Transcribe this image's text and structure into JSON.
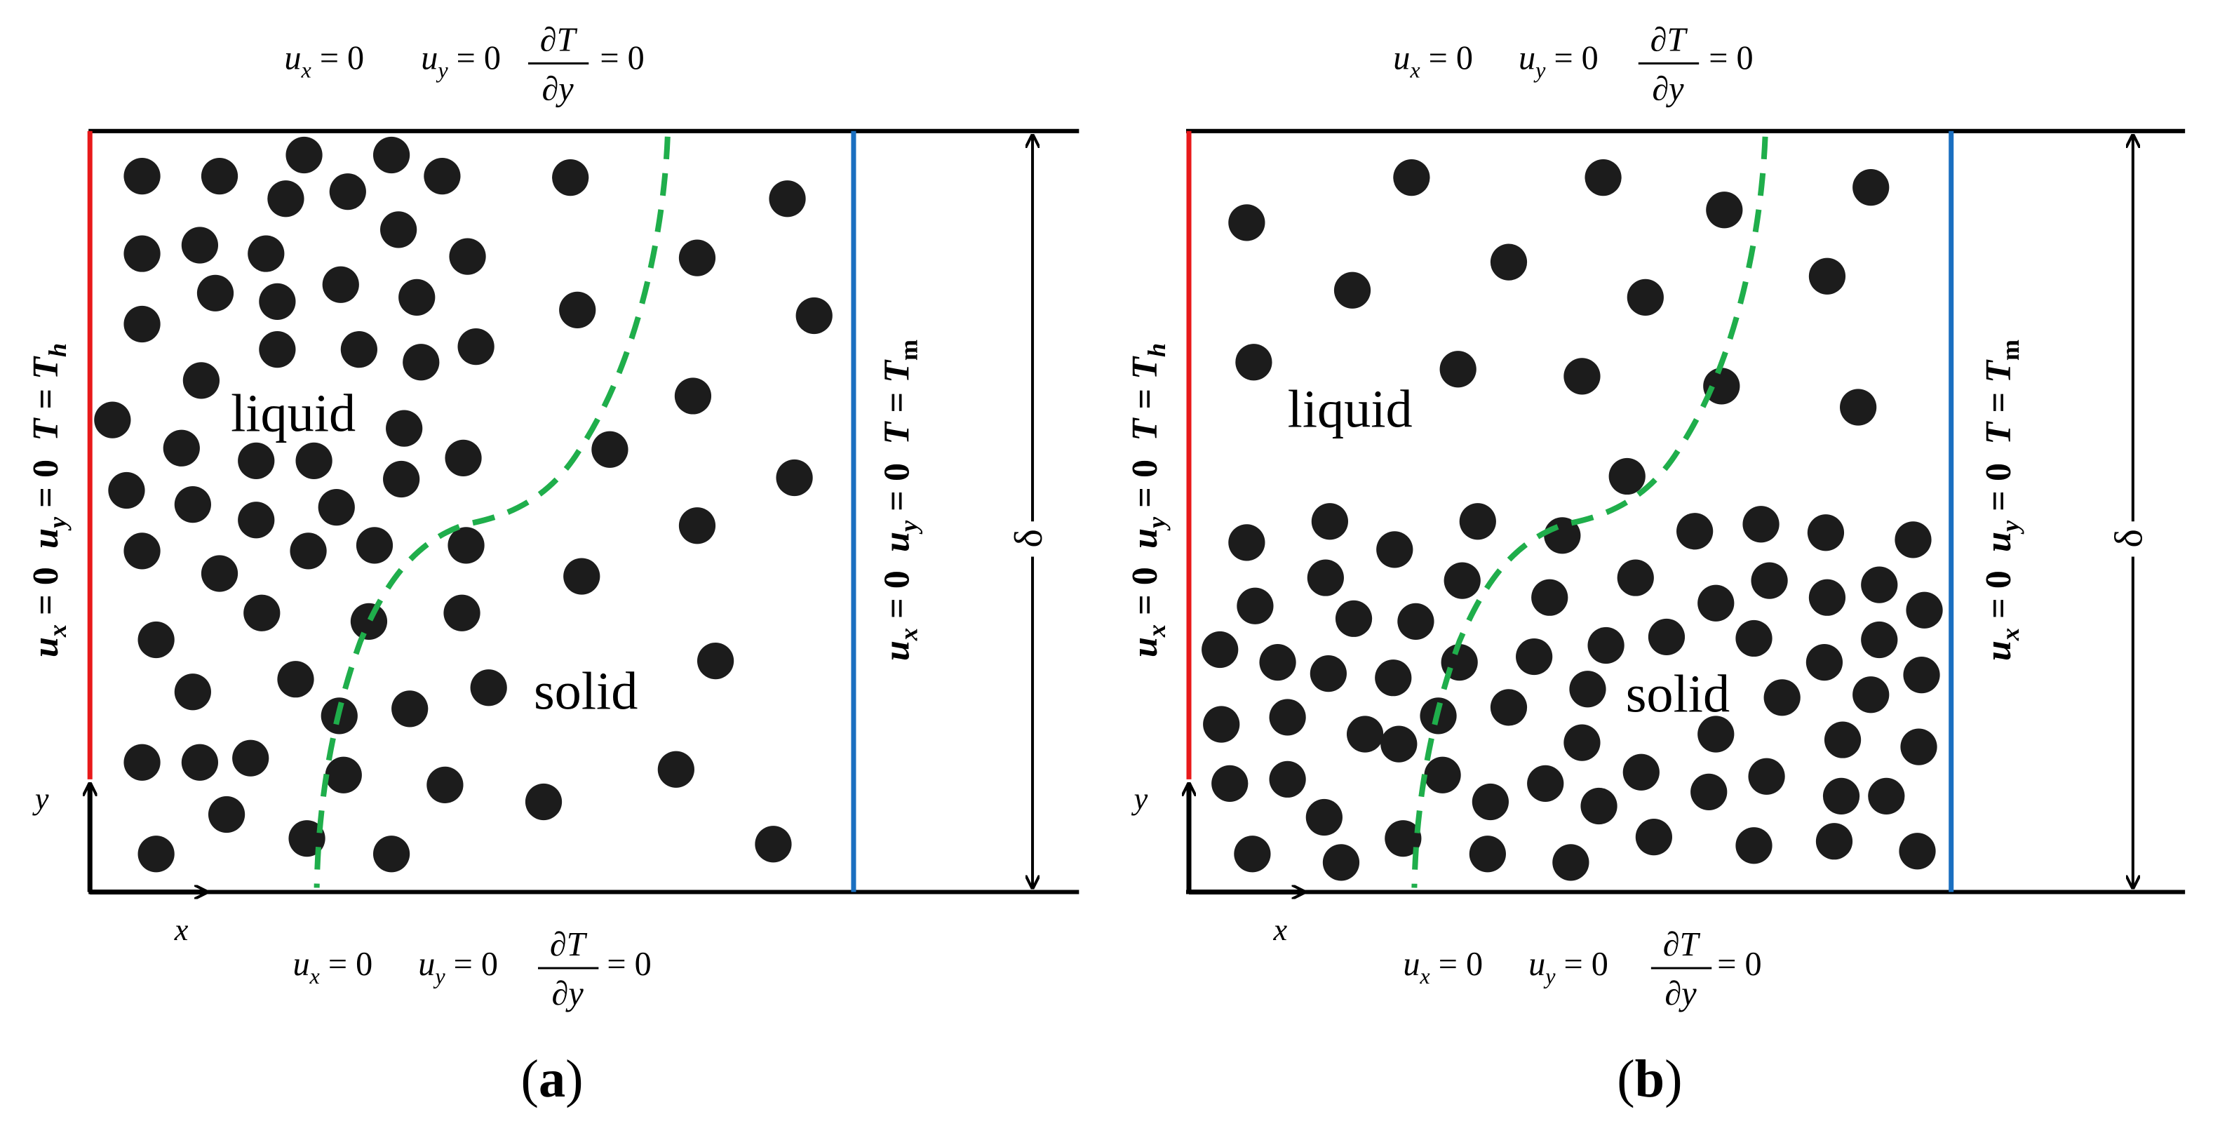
{
  "panels": [
    {
      "label": "(a)",
      "label_letter": "a",
      "region_upper": "liquid",
      "region_lower": "solid",
      "top_bc": {
        "ux": "u",
        "ux_sub": "x",
        "uy": "u",
        "uy_sub": "y",
        "eq": "= 0",
        "dT_num": "∂T",
        "dT_den": "∂y"
      },
      "bottom_bc": {
        "ux": "u",
        "ux_sub": "x",
        "uy": "u",
        "uy_sub": "y",
        "eq": "= 0",
        "dT_num": "∂T",
        "dT_den": "∂y"
      },
      "left_bc": "u",
      "left_bc_full": {
        "u1": "u",
        "s1": "x",
        "e1": " = 0  ",
        "u2": "u",
        "s2": "y",
        "e2": " = 0  ",
        "t": "T = T",
        "ts": "h"
      },
      "right_bc_full": {
        "u1": "u",
        "s1": "x",
        "e1": " = 0  ",
        "u2": "u",
        "s2": "y",
        "e2": " = 0  ",
        "t": "T = T",
        "ts": "m"
      },
      "axis_x": "x",
      "axis_y": "y",
      "dimension": "δ",
      "particles": [
        [
          100,
          125
        ],
        [
          155,
          125
        ],
        [
          215,
          110
        ],
        [
          277,
          110
        ],
        [
          313,
          125
        ],
        [
          404,
          126
        ],
        [
          558,
          141
        ],
        [
          202,
          141
        ],
        [
          246,
          136
        ],
        [
          100,
          180
        ],
        [
          141,
          174
        ],
        [
          188,
          180
        ],
        [
          282,
          163
        ],
        [
          331,
          182
        ],
        [
          494,
          183
        ],
        [
          152,
          208
        ],
        [
          196,
          214
        ],
        [
          241,
          202
        ],
        [
          295,
          211
        ],
        [
          409,
          220
        ],
        [
          577,
          224
        ],
        [
          100,
          230
        ],
        [
          196,
          248
        ],
        [
          254,
          248
        ],
        [
          298,
          257
        ],
        [
          337,
          246
        ],
        [
          142,
          270
        ],
        [
          79,
          298
        ],
        [
          491,
          281
        ],
        [
          286,
          304
        ],
        [
          128,
          318
        ],
        [
          181,
          327
        ],
        [
          222,
          327
        ],
        [
          328,
          325
        ],
        [
          432,
          319
        ],
        [
          563,
          339
        ],
        [
          89,
          348
        ],
        [
          136,
          358
        ],
        [
          181,
          369
        ],
        [
          238,
          360
        ],
        [
          284,
          340
        ],
        [
          100,
          391
        ],
        [
          218,
          391
        ],
        [
          265,
          387
        ],
        [
          330,
          387
        ],
        [
          494,
          373
        ],
        [
          155,
          407
        ],
        [
          412,
          409
        ],
        [
          185,
          435
        ],
        [
          261,
          441
        ],
        [
          327,
          435
        ],
        [
          110,
          454
        ],
        [
          136,
          491
        ],
        [
          209,
          482
        ],
        [
          346,
          488
        ],
        [
          507,
          469
        ],
        [
          240,
          508
        ],
        [
          290,
          503
        ],
        [
          100,
          541
        ],
        [
          141,
          541
        ],
        [
          177,
          538
        ],
        [
          243,
          550
        ],
        [
          315,
          557
        ],
        [
          479,
          546
        ],
        [
          160,
          578
        ],
        [
          385,
          569
        ],
        [
          217,
          595
        ],
        [
          110,
          606
        ],
        [
          277,
          606
        ],
        [
          548,
          599
        ]
      ]
    },
    {
      "label": "(b)",
      "label_letter": "b",
      "region_upper": "liquid",
      "region_lower": "solid",
      "top_bc": {
        "ux": "u",
        "ux_sub": "x",
        "uy": "u",
        "uy_sub": "y",
        "eq": "= 0",
        "dT_num": "∂T",
        "dT_den": "∂y"
      },
      "bottom_bc": {
        "ux": "u",
        "ux_sub": "x",
        "uy": "u",
        "uy_sub": "y",
        "eq": "= 0",
        "dT_num": "∂T",
        "dT_den": "∂y"
      },
      "left_bc": "u",
      "left_bc_full": {
        "u1": "u",
        "s1": "x",
        "e1": " = 0  ",
        "u2": "u",
        "s2": "y",
        "e2": " = 0  ",
        "t": "T = T",
        "ts": "h"
      },
      "right_bc_full": {
        "u1": "u",
        "s1": "x",
        "e1": " = 0  ",
        "u2": "u",
        "s2": "y",
        "e2": " = 0  ",
        "t": "T = T",
        "ts": "m"
      },
      "axis_x": "x",
      "axis_y": "y",
      "dimension": "δ",
      "particles": [
        [
          1001,
          126
        ],
        [
          1137,
          126
        ],
        [
          1327,
          133
        ],
        [
          884,
          158
        ],
        [
          1223,
          149
        ],
        [
          1070,
          186
        ],
        [
          959,
          206
        ],
        [
          1167,
          211
        ],
        [
          1296,
          196
        ],
        [
          889,
          257
        ],
        [
          1034,
          262
        ],
        [
          1122,
          267
        ],
        [
          1221,
          274
        ],
        [
          1318,
          289
        ],
        [
          1154,
          338
        ],
        [
          884,
          385
        ],
        [
          943,
          370
        ],
        [
          989,
          390
        ],
        [
          1048,
          370
        ],
        [
          1108,
          380
        ],
        [
          1202,
          377
        ],
        [
          1249,
          372
        ],
        [
          1295,
          378
        ],
        [
          1357,
          383
        ],
        [
          940,
          410
        ],
        [
          1037,
          412
        ],
        [
          1099,
          424
        ],
        [
          1160,
          410
        ],
        [
          1255,
          412
        ],
        [
          1296,
          424
        ],
        [
          1333,
          415
        ],
        [
          890,
          430
        ],
        [
          960,
          439
        ],
        [
          1004,
          441
        ],
        [
          1217,
          428
        ],
        [
          1365,
          433
        ],
        [
          865,
          461
        ],
        [
          906,
          470
        ],
        [
          942,
          478
        ],
        [
          988,
          481
        ],
        [
          1035,
          470
        ],
        [
          1088,
          466
        ],
        [
          1139,
          458
        ],
        [
          1182,
          452
        ],
        [
          1244,
          453
        ],
        [
          1294,
          470
        ],
        [
          1333,
          454
        ],
        [
          866,
          514
        ],
        [
          913,
          509
        ],
        [
          968,
          521
        ],
        [
          1020,
          508
        ],
        [
          1070,
          502
        ],
        [
          1126,
          489
        ],
        [
          1264,
          495
        ],
        [
          1327,
          493
        ],
        [
          1363,
          479
        ],
        [
          872,
          556
        ],
        [
          913,
          553
        ],
        [
          992,
          528
        ],
        [
          1122,
          527
        ],
        [
          1217,
          521
        ],
        [
          1307,
          525
        ],
        [
          1361,
          530
        ],
        [
          939,
          580
        ],
        [
          1023,
          550
        ],
        [
          1057,
          569
        ],
        [
          1096,
          556
        ],
        [
          1134,
          572
        ],
        [
          1164,
          548
        ],
        [
          1212,
          562
        ],
        [
          1253,
          551
        ],
        [
          1306,
          565
        ],
        [
          1338,
          565
        ],
        [
          888,
          606
        ],
        [
          951,
          612
        ],
        [
          995,
          595
        ],
        [
          1055,
          606
        ],
        [
          1114,
          612
        ],
        [
          1173,
          594
        ],
        [
          1244,
          600
        ],
        [
          1301,
          597
        ],
        [
          1360,
          604
        ]
      ]
    }
  ]
}
